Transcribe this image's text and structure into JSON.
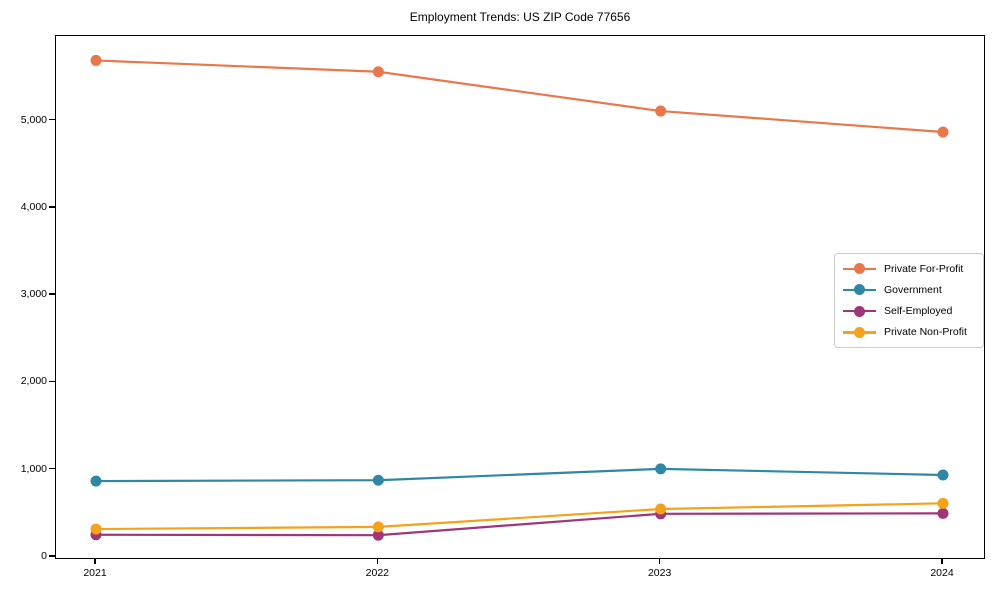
{
  "chart_data": {
    "type": "line",
    "title": "Employment Trends: US ZIP Code 77656",
    "categories": [
      "2021",
      "2022",
      "2023",
      "2024"
    ],
    "series": [
      {
        "name": "Private For-Profit",
        "color": "#e8774b",
        "values": [
          5690,
          5560,
          5110,
          4870
        ]
      },
      {
        "name": "Government",
        "color": "#2f87a5",
        "values": [
          870,
          880,
          1010,
          940
        ]
      },
      {
        "name": "Self-Employed",
        "color": "#9f3677",
        "values": [
          255,
          250,
          495,
          500
        ]
      },
      {
        "name": "Private Non-Profit",
        "color": "#f3a21a",
        "values": [
          320,
          345,
          550,
          615
        ]
      }
    ],
    "xlabel": "",
    "ylabel": "",
    "ylim": [
      0,
      5970
    ],
    "yticks": [
      0,
      1000,
      2000,
      3000,
      4000,
      5000
    ],
    "ytick_labels": [
      "0",
      "1,000",
      "2,000",
      "3,000",
      "4,000",
      "5,000"
    ],
    "grid": false,
    "legend_position": "center-right",
    "marker": "circle",
    "background_color": "#ffffff",
    "axis_color": "#000000"
  }
}
